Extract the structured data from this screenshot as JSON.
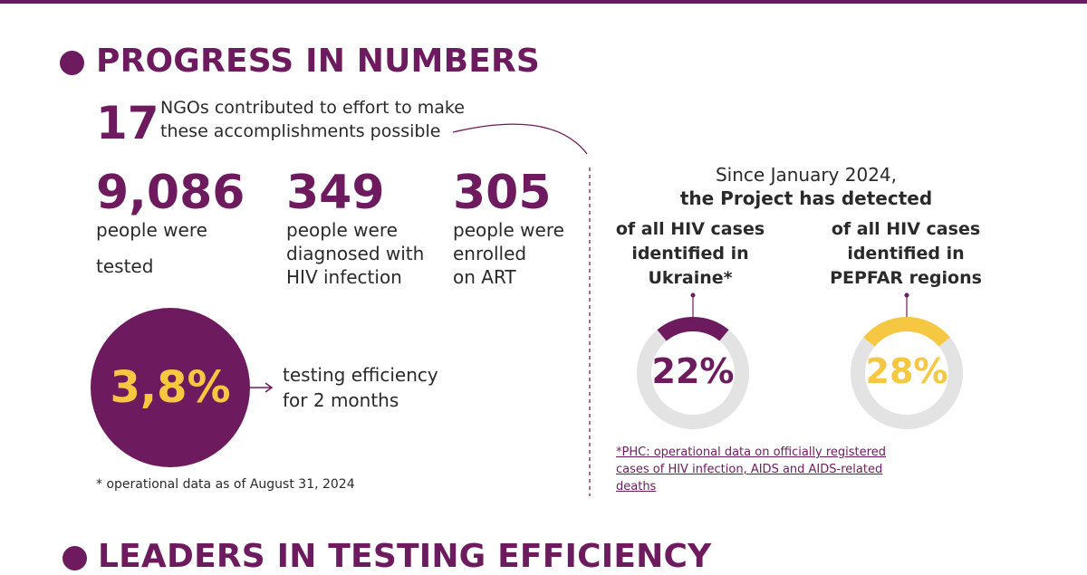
{
  "progress": {
    "heading": "PROGRESS IN NUMBERS",
    "ngo_count": "17",
    "ngo_text_line1": "NGOs contributed to effort to make",
    "ngo_text_line2": "these accomplishments possible",
    "stats": [
      {
        "number": "9,086",
        "line1": "people were",
        "line2": "tested",
        "line3": ""
      },
      {
        "number": "349",
        "line1": "people were",
        "line2": "diagnosed with",
        "line3": "HIV infection"
      },
      {
        "number": "305",
        "line1": "people were",
        "line2": "enrolled",
        "line3": "on ART"
      }
    ],
    "efficiency_value": "3,8%",
    "efficiency_line1": "testing efficiency",
    "efficiency_line2": "for 2 months",
    "footnote": "* operational data as of August 31, 2024"
  },
  "detection": {
    "since_line1": "Since January 2024,",
    "since_line2": "the Project has detected",
    "ukraine": {
      "label_line1": "of all HIV cases",
      "label_line2": "identified in",
      "label_line3": "Ukraine*",
      "value_text": "22%",
      "value": 22,
      "color": "#6d1b5e"
    },
    "pepfar": {
      "label_line1": "of all HIV cases",
      "label_line2": "identified in",
      "label_line3": "PEPFAR regions",
      "value_text": "28%",
      "value": 28,
      "color": "#f6c842"
    },
    "phc_note_line1": "*PHC: operational data on officially registered",
    "phc_note_line2": "cases of HIV infection, AIDS and AIDS-related",
    "phc_note_line3": "deaths"
  },
  "leaders": {
    "heading": "LEADERS IN TESTING EFFICIENCY"
  },
  "colors": {
    "brand_purple": "#6d1b5e",
    "accent_yellow": "#f6c842",
    "ring_gray": "#e3e3e3"
  }
}
